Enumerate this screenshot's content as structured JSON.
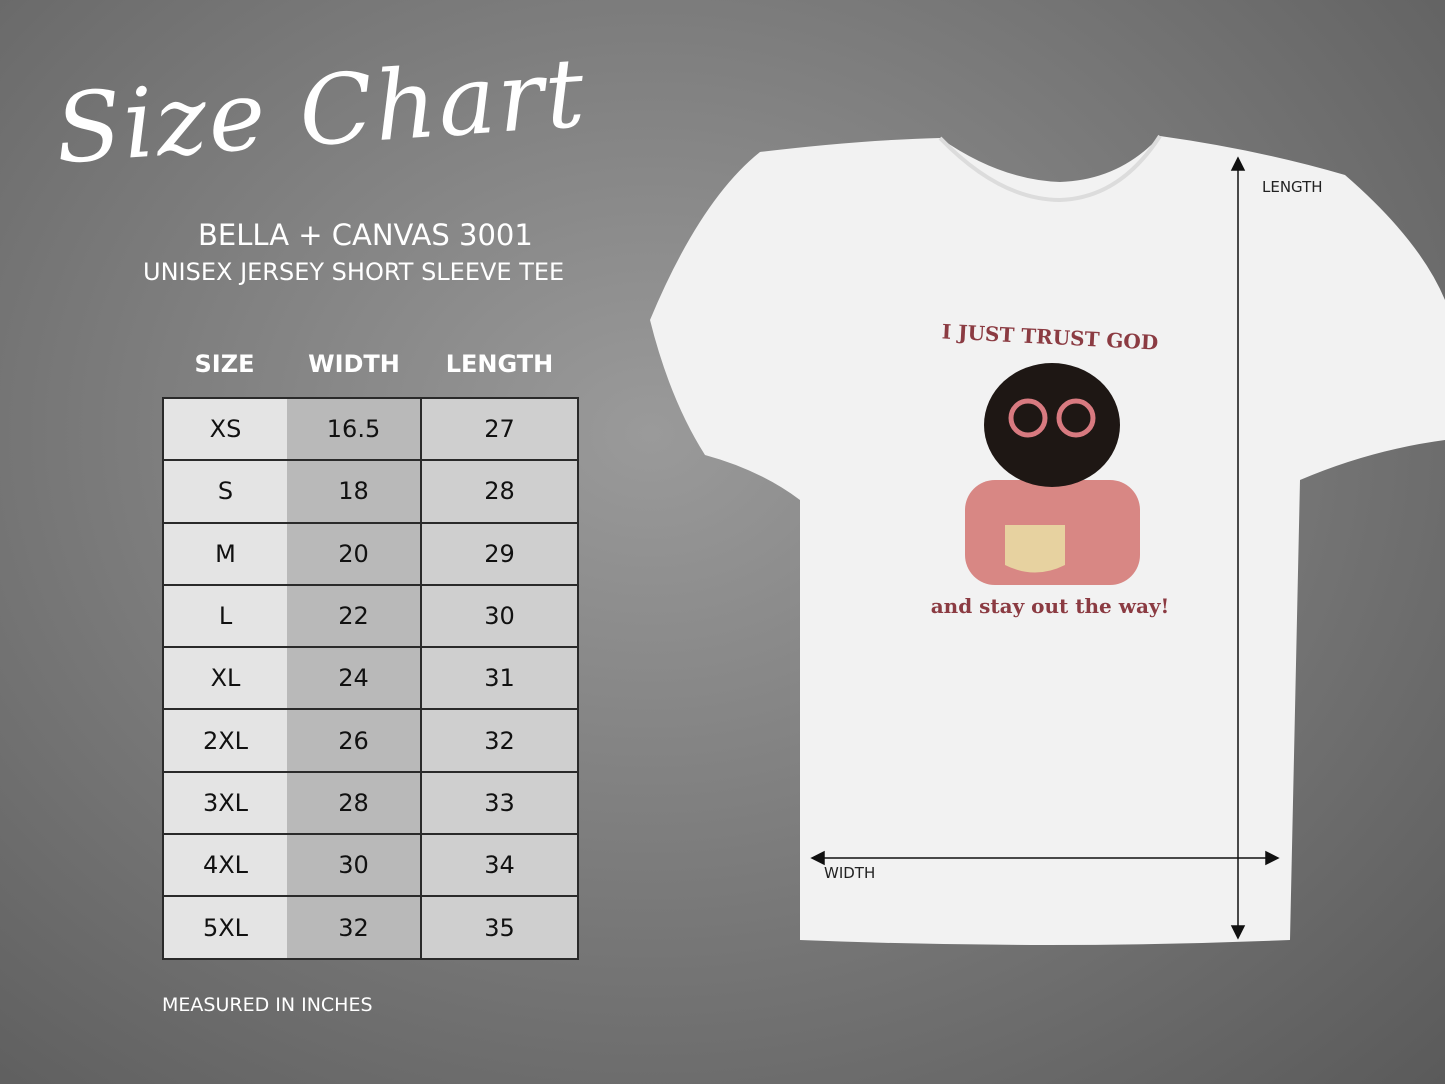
{
  "title": "Size Chart",
  "brand": "BELLA + CANVAS 3001",
  "subtitle": "UNISEX JERSEY SHORT SLEEVE TEE",
  "table": {
    "headers": [
      "SIZE",
      "WIDTH",
      "LENGTH"
    ],
    "rows": [
      [
        "XS",
        "16.5",
        "27"
      ],
      [
        "S",
        "18",
        "28"
      ],
      [
        "M",
        "20",
        "29"
      ],
      [
        "L",
        "22",
        "30"
      ],
      [
        "XL",
        "24",
        "31"
      ],
      [
        "2XL",
        "26",
        "32"
      ],
      [
        "3XL",
        "28",
        "33"
      ],
      [
        "4XL",
        "30",
        "34"
      ],
      [
        "5XL",
        "32",
        "35"
      ]
    ]
  },
  "note": "MEASURED IN INCHES",
  "shirt": {
    "length_label": "LENGTH",
    "width_label": "WIDTH",
    "print_top": "I JUST TRUST GOD",
    "print_bottom": "and stay out the way!",
    "color": "#f2f2f2",
    "print_color": "#8b3b42"
  }
}
